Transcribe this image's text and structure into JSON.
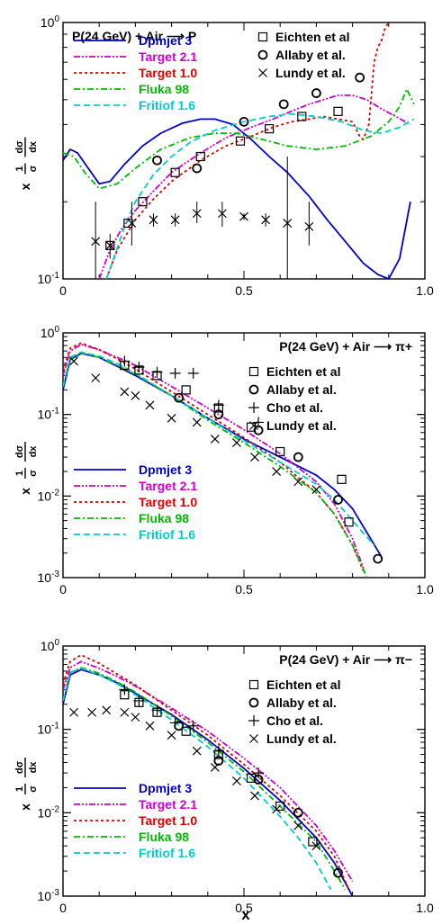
{
  "figure": {
    "x_axis_label": "x",
    "y_axis_label": [
      "x",
      "1",
      "σ",
      "dσ",
      "dx"
    ]
  },
  "model_styles": {
    "Dpmjet 3": {
      "color": "#0000cc",
      "dash": "solid"
    },
    "Target 2.1": {
      "color": "#cc00cc",
      "dash": "dashdotdot"
    },
    "Target 1.0": {
      "color": "#dd0000",
      "dash": "dotted"
    },
    "Fluka 98": {
      "color": "#00bb00",
      "dash": "dashdot"
    },
    "Fritiof 1.6": {
      "color": "#00cccc",
      "dash": "dashed"
    }
  },
  "chart_data": [
    {
      "type": "line",
      "title": "P(24 GeV) + Air ⟶ P",
      "title_position": "top-left",
      "xlim": [
        0,
        1.0
      ],
      "ylim": [
        0.1,
        1.0
      ],
      "yscale": "log",
      "x_ticks": [
        "0",
        "0.5",
        "1.0"
      ],
      "x_tick_values": [
        0,
        0.5,
        1.0
      ],
      "y_ticks": [
        "10^0",
        "10^-1"
      ],
      "y_tick_values": [
        1.0,
        0.1
      ],
      "model_legend_position": "top-left",
      "data_legend_position": "top-right",
      "series": [
        {
          "name": "Dpmjet 3",
          "x": [
            0.0,
            0.02,
            0.04,
            0.07,
            0.1,
            0.13,
            0.17,
            0.22,
            0.27,
            0.33,
            0.38,
            0.42,
            0.47,
            0.52,
            0.57,
            0.62,
            0.68,
            0.73,
            0.78,
            0.83,
            0.87,
            0.9,
            0.93,
            0.96
          ],
          "y": [
            0.29,
            0.32,
            0.31,
            0.27,
            0.235,
            0.24,
            0.28,
            0.33,
            0.37,
            0.405,
            0.42,
            0.42,
            0.4,
            0.35,
            0.3,
            0.26,
            0.21,
            0.17,
            0.14,
            0.115,
            0.104,
            0.1,
            0.12,
            0.2
          ]
        },
        {
          "name": "Target 2.1",
          "x": [
            0.1,
            0.13,
            0.16,
            0.2,
            0.25,
            0.3,
            0.38,
            0.45,
            0.52,
            0.58,
            0.63,
            0.68,
            0.72,
            0.76,
            0.8,
            0.84,
            0.88,
            0.92,
            0.96
          ],
          "y": [
            0.1,
            0.13,
            0.155,
            0.185,
            0.22,
            0.26,
            0.31,
            0.355,
            0.39,
            0.42,
            0.45,
            0.48,
            0.5,
            0.52,
            0.52,
            0.5,
            0.46,
            0.43,
            0.4
          ]
        },
        {
          "name": "Target 1.0",
          "x": [
            0.12,
            0.15,
            0.2,
            0.25,
            0.3,
            0.38,
            0.45,
            0.52,
            0.58,
            0.63,
            0.68,
            0.72,
            0.76,
            0.8,
            0.82,
            0.83,
            0.845,
            0.86,
            0.87,
            0.88,
            0.89,
            0.9
          ],
          "y": [
            0.1,
            0.13,
            0.17,
            0.205,
            0.24,
            0.29,
            0.33,
            0.36,
            0.39,
            0.41,
            0.42,
            0.43,
            0.42,
            0.41,
            0.36,
            0.35,
            0.4,
            0.7,
            0.8,
            0.85,
            0.95,
            1.0
          ]
        },
        {
          "name": "Fluka 98",
          "x": [
            0.0,
            0.03,
            0.06,
            0.1,
            0.15,
            0.2,
            0.27,
            0.35,
            0.42,
            0.48,
            0.55,
            0.62,
            0.7,
            0.78,
            0.85,
            0.9,
            0.93,
            0.95,
            0.97
          ],
          "y": [
            0.31,
            0.3,
            0.26,
            0.225,
            0.235,
            0.27,
            0.32,
            0.355,
            0.37,
            0.37,
            0.35,
            0.33,
            0.32,
            0.33,
            0.36,
            0.41,
            0.47,
            0.55,
            0.48
          ]
        },
        {
          "name": "Fritiof 1.6",
          "x": [
            0.12,
            0.14,
            0.17,
            0.2,
            0.25,
            0.3,
            0.35,
            0.42,
            0.5,
            0.57,
            0.63,
            0.7,
            0.77,
            0.83,
            0.88,
            0.93,
            0.97
          ],
          "y": [
            0.1,
            0.12,
            0.16,
            0.2,
            0.255,
            0.3,
            0.34,
            0.38,
            0.41,
            0.43,
            0.44,
            0.43,
            0.41,
            0.38,
            0.37,
            0.39,
            0.42
          ]
        }
      ],
      "data_points": [
        {
          "name": "Eichten et al",
          "marker": "square",
          "x": [
            0.13,
            0.18,
            0.22,
            0.31,
            0.38,
            0.49,
            0.57,
            0.66,
            0.76
          ],
          "y": [
            0.135,
            0.165,
            0.2,
            0.26,
            0.3,
            0.345,
            0.385,
            0.43,
            0.45
          ]
        },
        {
          "name": "Allaby et al.",
          "marker": "circle",
          "x": [
            0.26,
            0.37,
            0.5,
            0.61,
            0.7,
            0.82
          ],
          "y": [
            0.29,
            0.27,
            0.41,
            0.48,
            0.53,
            0.61
          ]
        },
        {
          "name": "Lundy et al.",
          "marker": "cross",
          "x": [
            0.09,
            0.13,
            0.19,
            0.25,
            0.31,
            0.37,
            0.44,
            0.5,
            0.56,
            0.62,
            0.68
          ],
          "y": [
            0.14,
            0.135,
            0.165,
            0.17,
            0.17,
            0.18,
            0.18,
            0.175,
            0.17,
            0.165,
            0.16
          ],
          "err_lo": [
            0.1,
            0.12,
            0.135,
            0.16,
            0.16,
            0.165,
            0.16,
            0.17,
            0.16,
            0.1,
            0.135
          ],
          "err_hi": [
            0.2,
            0.15,
            0.2,
            0.18,
            0.18,
            0.2,
            0.2,
            0.18,
            0.18,
            0.3,
            0.2
          ]
        }
      ]
    },
    {
      "type": "line",
      "title": "P(24 GeV) + Air ⟶ π+",
      "title_position": "top-right",
      "xlim": [
        0,
        1.0
      ],
      "ylim": [
        0.001,
        1.0
      ],
      "yscale": "log",
      "x_ticks": [
        "0",
        "0.5",
        "1.0"
      ],
      "x_tick_values": [
        0,
        0.5,
        1.0
      ],
      "y_ticks": [
        "10^0",
        "10^-1",
        "10^-2",
        "10^-3"
      ],
      "y_tick_values": [
        1.0,
        0.1,
        0.01,
        0.001
      ],
      "model_legend_position": "bottom-left",
      "data_legend_position": "top-right",
      "series": [
        {
          "name": "Dpmjet 3",
          "x": [
            0.0,
            0.02,
            0.05,
            0.1,
            0.15,
            0.2,
            0.3,
            0.4,
            0.5,
            0.6,
            0.7,
            0.75,
            0.8,
            0.85,
            0.88
          ],
          "y": [
            0.2,
            0.47,
            0.56,
            0.5,
            0.39,
            0.3,
            0.17,
            0.09,
            0.05,
            0.03,
            0.018,
            0.012,
            0.007,
            0.003,
            0.0018
          ]
        },
        {
          "name": "Target 2.1",
          "x": [
            0.0,
            0.02,
            0.05,
            0.1,
            0.15,
            0.2,
            0.3,
            0.4,
            0.5,
            0.6,
            0.7,
            0.75,
            0.8,
            0.83
          ],
          "y": [
            0.3,
            0.6,
            0.72,
            0.62,
            0.5,
            0.4,
            0.22,
            0.12,
            0.065,
            0.033,
            0.015,
            0.008,
            0.003,
            0.0013
          ]
        },
        {
          "name": "Target 1.0",
          "x": [
            0.0,
            0.02,
            0.05,
            0.1,
            0.15,
            0.2,
            0.3,
            0.4,
            0.5,
            0.6,
            0.7,
            0.75,
            0.8,
            0.83
          ],
          "y": [
            0.35,
            0.65,
            0.75,
            0.62,
            0.48,
            0.36,
            0.19,
            0.1,
            0.052,
            0.026,
            0.011,
            0.006,
            0.0025,
            0.0012
          ]
        },
        {
          "name": "Fluka 98",
          "x": [
            0.0,
            0.02,
            0.05,
            0.1,
            0.15,
            0.2,
            0.3,
            0.4,
            0.5,
            0.6,
            0.7,
            0.75,
            0.8,
            0.84
          ],
          "y": [
            0.22,
            0.48,
            0.57,
            0.5,
            0.4,
            0.31,
            0.17,
            0.085,
            0.045,
            0.023,
            0.011,
            0.006,
            0.0025,
            0.001
          ]
        },
        {
          "name": "Fritiof 1.6",
          "x": [
            0.0,
            0.02,
            0.05,
            0.1,
            0.15,
            0.2,
            0.3,
            0.4,
            0.5,
            0.6,
            0.7,
            0.75,
            0.8,
            0.83,
            0.86
          ],
          "y": [
            0.22,
            0.5,
            0.58,
            0.52,
            0.42,
            0.32,
            0.17,
            0.09,
            0.048,
            0.026,
            0.014,
            0.009,
            0.005,
            0.0035,
            0.0025
          ]
        }
      ],
      "data_points": [
        {
          "name": "Eichten et al",
          "marker": "square",
          "x": [
            0.17,
            0.21,
            0.26,
            0.34,
            0.43,
            0.52,
            0.6,
            0.77,
            0.79
          ],
          "y": [
            0.4,
            0.35,
            0.3,
            0.2,
            0.12,
            0.07,
            0.035,
            0.016,
            0.0048
          ]
        },
        {
          "name": "Allaby et al.",
          "marker": "circle",
          "x": [
            0.32,
            0.43,
            0.54,
            0.65,
            0.76,
            0.87
          ],
          "y": [
            0.16,
            0.1,
            0.064,
            0.03,
            0.009,
            0.0017
          ]
        },
        {
          "name": "Cho et al.",
          "marker": "plus",
          "x": [
            0.17,
            0.21,
            0.26,
            0.31,
            0.36,
            0.43,
            0.54
          ],
          "y": [
            0.45,
            0.38,
            0.33,
            0.32,
            0.32,
            0.13,
            0.08
          ]
        },
        {
          "name": "Lundy et al.",
          "marker": "cross",
          "x": [
            0.03,
            0.09,
            0.17,
            0.2,
            0.24,
            0.3,
            0.37,
            0.42,
            0.48,
            0.53,
            0.59,
            0.65,
            0.7
          ],
          "y": [
            0.45,
            0.28,
            0.19,
            0.17,
            0.13,
            0.09,
            0.08,
            0.05,
            0.045,
            0.03,
            0.02,
            0.015,
            0.012
          ]
        }
      ]
    },
    {
      "type": "line",
      "title": "P(24 GeV) + Air ⟶ π−",
      "title_position": "top-right",
      "xlim": [
        0,
        1.0
      ],
      "ylim": [
        0.001,
        1.0
      ],
      "yscale": "log",
      "x_ticks": [
        "0",
        "0.5",
        "1.0"
      ],
      "x_tick_values": [
        0,
        0.5,
        1.0
      ],
      "y_ticks": [
        "10^0",
        "10^-1",
        "10^-2",
        "10^-3"
      ],
      "y_tick_values": [
        1.0,
        0.1,
        0.01,
        0.001
      ],
      "model_legend_position": "bottom-left",
      "data_legend_position": "top-right",
      "series": [
        {
          "name": "Dpmjet 3",
          "x": [
            0.0,
            0.02,
            0.05,
            0.1,
            0.15,
            0.2,
            0.3,
            0.4,
            0.5,
            0.6,
            0.7,
            0.75,
            0.8
          ],
          "y": [
            0.2,
            0.45,
            0.52,
            0.45,
            0.36,
            0.27,
            0.15,
            0.075,
            0.034,
            0.014,
            0.005,
            0.0025,
            0.001
          ]
        },
        {
          "name": "Target 2.1",
          "x": [
            0.0,
            0.02,
            0.05,
            0.1,
            0.15,
            0.2,
            0.3,
            0.4,
            0.5,
            0.6,
            0.7,
            0.75,
            0.8
          ],
          "y": [
            0.3,
            0.55,
            0.65,
            0.54,
            0.43,
            0.33,
            0.18,
            0.095,
            0.045,
            0.02,
            0.007,
            0.0035,
            0.0015
          ]
        },
        {
          "name": "Target 1.0",
          "x": [
            0.0,
            0.02,
            0.05,
            0.1,
            0.15,
            0.2,
            0.3,
            0.4,
            0.5,
            0.6,
            0.7,
            0.75,
            0.79
          ],
          "y": [
            0.35,
            0.65,
            0.78,
            0.62,
            0.46,
            0.34,
            0.17,
            0.085,
            0.038,
            0.016,
            0.006,
            0.003,
            0.0012
          ]
        },
        {
          "name": "Fluka 98",
          "x": [
            0.0,
            0.02,
            0.05,
            0.1,
            0.15,
            0.2,
            0.3,
            0.4,
            0.5,
            0.6,
            0.7,
            0.75,
            0.78
          ],
          "y": [
            0.22,
            0.48,
            0.55,
            0.47,
            0.37,
            0.28,
            0.145,
            0.07,
            0.031,
            0.012,
            0.0045,
            0.002,
            0.0012
          ]
        },
        {
          "name": "Fritiof 1.6",
          "x": [
            0.0,
            0.02,
            0.05,
            0.1,
            0.15,
            0.2,
            0.3,
            0.4,
            0.5,
            0.6,
            0.65,
            0.7,
            0.74
          ],
          "y": [
            0.22,
            0.48,
            0.54,
            0.45,
            0.35,
            0.26,
            0.13,
            0.062,
            0.026,
            0.009,
            0.005,
            0.0025,
            0.0012
          ]
        }
      ],
      "data_points": [
        {
          "name": "Eichten et al",
          "marker": "square",
          "x": [
            0.17,
            0.21,
            0.26,
            0.34,
            0.43,
            0.52,
            0.6,
            0.69
          ],
          "y": [
            0.26,
            0.21,
            0.16,
            0.095,
            0.05,
            0.026,
            0.012,
            0.0045
          ]
        },
        {
          "name": "Allaby et al.",
          "marker": "circle",
          "x": [
            0.32,
            0.43,
            0.54,
            0.65,
            0.76
          ],
          "y": [
            0.11,
            0.042,
            0.025,
            0.01,
            0.0019
          ]
        },
        {
          "name": "Cho et al.",
          "marker": "plus",
          "x": [
            0.17,
            0.21,
            0.26,
            0.31,
            0.36,
            0.43,
            0.54
          ],
          "y": [
            0.3,
            0.22,
            0.17,
            0.12,
            0.11,
            0.055,
            0.03
          ]
        },
        {
          "name": "Lundy et al.",
          "marker": "cross",
          "x": [
            0.03,
            0.08,
            0.12,
            0.17,
            0.2,
            0.24,
            0.3,
            0.37,
            0.42,
            0.48,
            0.53,
            0.59,
            0.65,
            0.7
          ],
          "y": [
            0.16,
            0.16,
            0.17,
            0.16,
            0.14,
            0.11,
            0.085,
            0.055,
            0.035,
            0.024,
            0.016,
            0.011,
            0.007,
            0.004
          ]
        }
      ]
    }
  ]
}
